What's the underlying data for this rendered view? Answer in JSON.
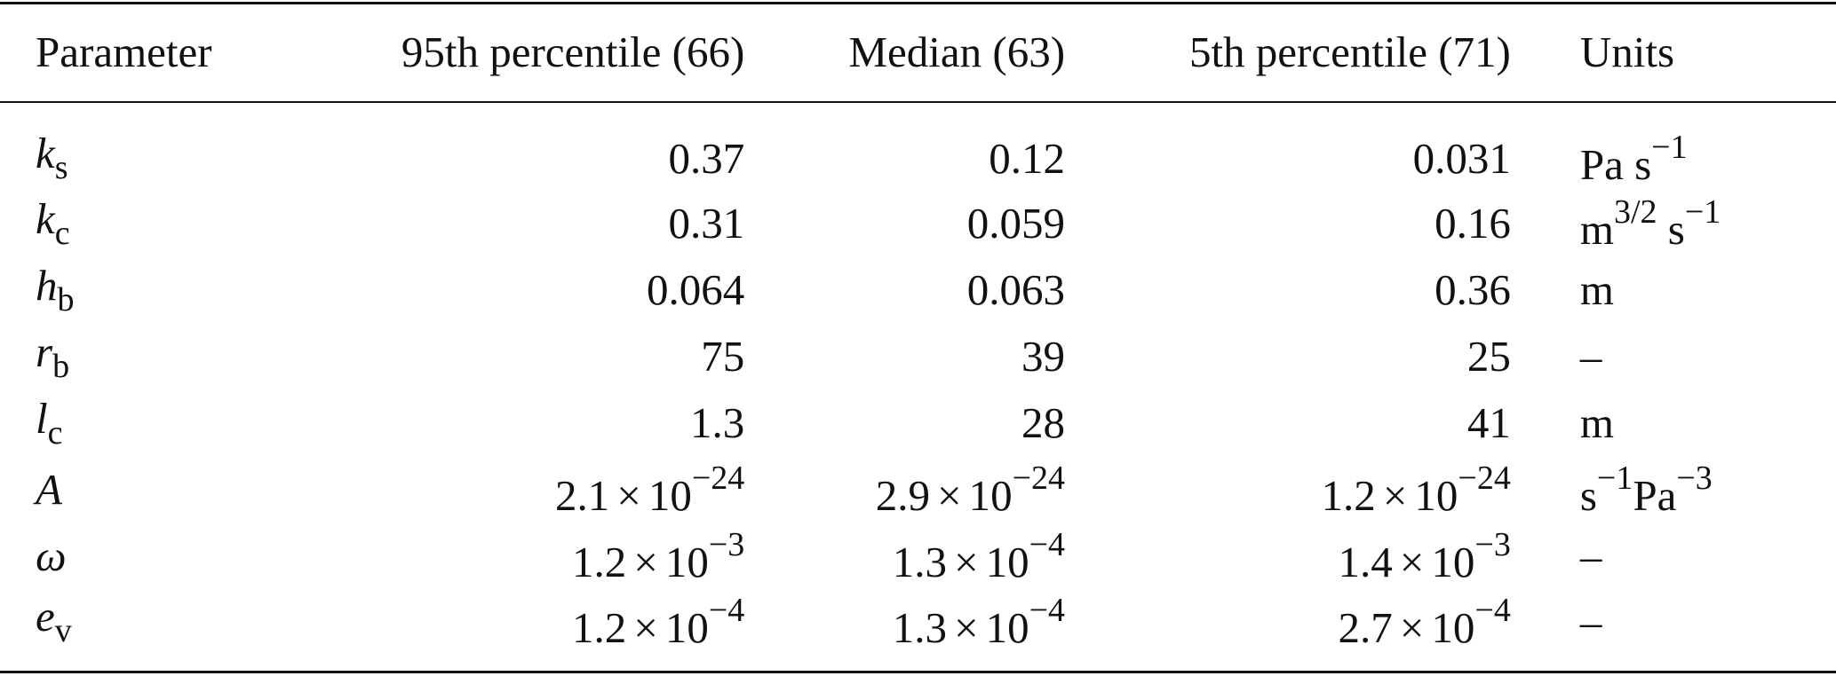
{
  "table": {
    "headers": [
      "Parameter",
      "95th percentile (66)",
      "Median (63)",
      "5th percentile (71)",
      "Units"
    ],
    "rows": [
      {
        "param": {
          "sym": "k",
          "sub": "s"
        },
        "p95": {
          "mant": "0.37"
        },
        "med": {
          "mant": "0.12"
        },
        "p5": {
          "mant": "0.031"
        },
        "units": {
          "base": "Pa s",
          "sup": "−1",
          "base2": "",
          "sup2": ""
        }
      },
      {
        "param": {
          "sym": "k",
          "sub": "c"
        },
        "p95": {
          "mant": "0.31"
        },
        "med": {
          "mant": "0.059"
        },
        "p5": {
          "mant": "0.16"
        },
        "units": {
          "base": "m",
          "sup": "3/2",
          "base2": " s",
          "sup2": "−1"
        }
      },
      {
        "param": {
          "sym": "h",
          "sub": "b"
        },
        "p95": {
          "mant": "0.064"
        },
        "med": {
          "mant": "0.063"
        },
        "p5": {
          "mant": "0.36"
        },
        "units": {
          "base": "m",
          "sup": "",
          "base2": "",
          "sup2": ""
        }
      },
      {
        "param": {
          "sym": "r",
          "sub": "b"
        },
        "p95": {
          "mant": "75"
        },
        "med": {
          "mant": "39"
        },
        "p5": {
          "mant": "25"
        },
        "units": {
          "base": "–",
          "sup": "",
          "base2": "",
          "sup2": ""
        }
      },
      {
        "param": {
          "sym": "l",
          "sub": "c"
        },
        "p95": {
          "mant": "1.3"
        },
        "med": {
          "mant": "28"
        },
        "p5": {
          "mant": "41"
        },
        "units": {
          "base": "m",
          "sup": "",
          "base2": "",
          "sup2": ""
        }
      },
      {
        "param": {
          "sym": "A",
          "sub": ""
        },
        "p95": {
          "mant": "2.1",
          "exp": "−24"
        },
        "med": {
          "mant": "2.9",
          "exp": "−24"
        },
        "p5": {
          "mant": "1.2",
          "exp": "−24"
        },
        "units": {
          "base": "s",
          "sup": "−1",
          "base2": "Pa",
          "sup2": "−3"
        }
      },
      {
        "param": {
          "sym": "ω",
          "sub": ""
        },
        "p95": {
          "mant": "1.2",
          "exp": "−3"
        },
        "med": {
          "mant": "1.3",
          "exp": "−4"
        },
        "p5": {
          "mant": "1.4",
          "exp": "−3"
        },
        "units": {
          "base": "–",
          "sup": "",
          "base2": "",
          "sup2": ""
        }
      },
      {
        "param": {
          "sym": "e",
          "sub": "v"
        },
        "p95": {
          "mant": "1.2",
          "exp": "−4"
        },
        "med": {
          "mant": "1.3",
          "exp": "−4"
        },
        "p5": {
          "mant": "2.7",
          "exp": "−4"
        },
        "units": {
          "base": "–",
          "sup": "",
          "base2": "",
          "sup2": ""
        }
      }
    ],
    "times_symbol": "×",
    "base_ten": "10"
  }
}
